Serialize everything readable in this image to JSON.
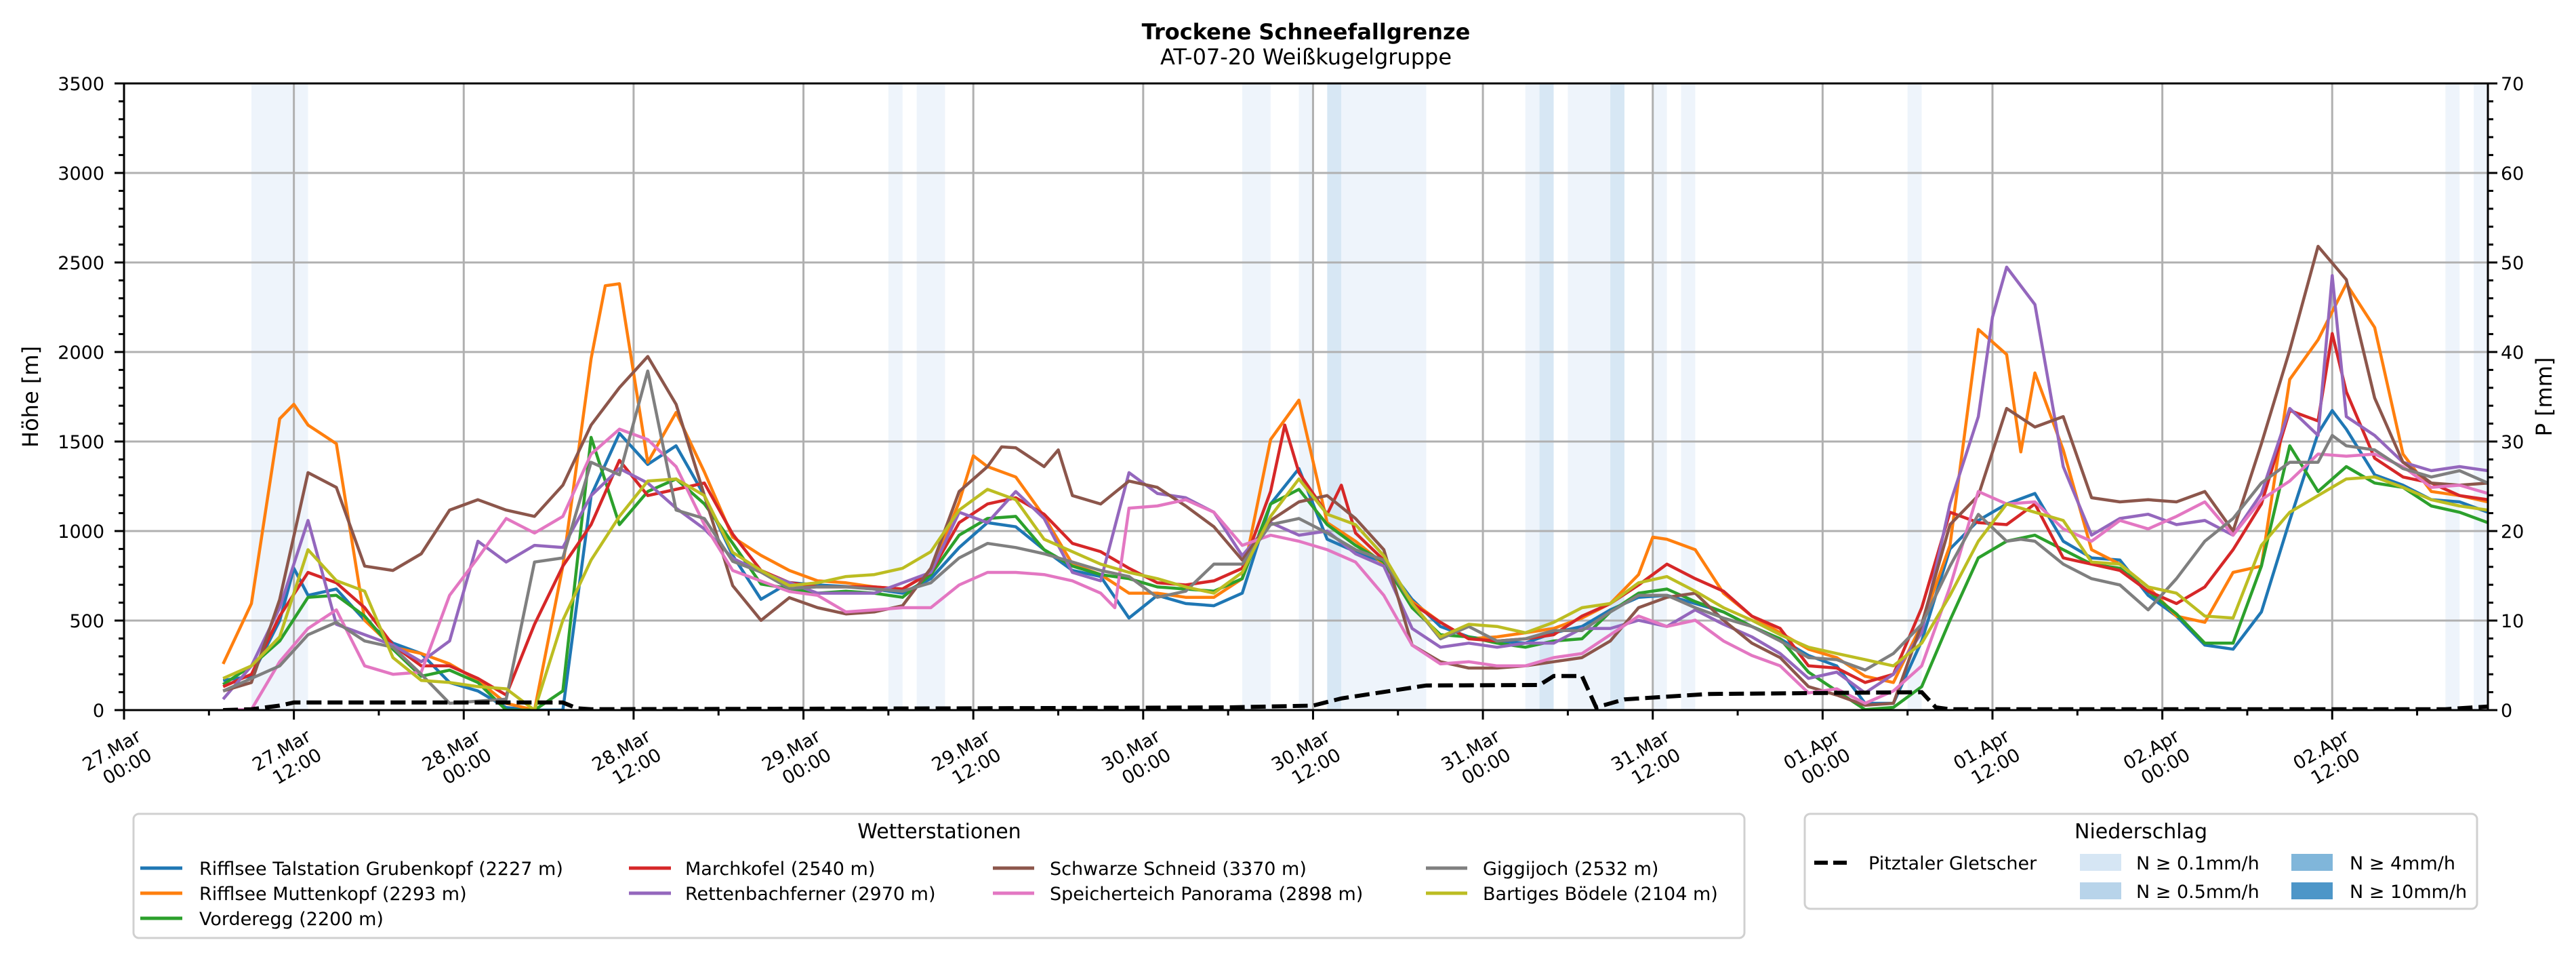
{
  "chart_data": {
    "type": "line",
    "title": "Trockene Schneefallgrenze",
    "subtitle": "AT-07-20 Weißkugelgruppe",
    "xlabel": "",
    "ylabel": "Höhe [m]",
    "y2label": "P [mm]",
    "ylim": [
      0,
      3500
    ],
    "y2lim": [
      0,
      70
    ],
    "xlim_hours": [
      0,
      167
    ],
    "grid": true,
    "yticks": [
      "0",
      "500",
      "1000",
      "1500",
      "2000",
      "2500",
      "3000",
      "3500"
    ],
    "y2ticks": [
      "0",
      "10",
      "20",
      "30",
      "40",
      "50",
      "60",
      "70"
    ],
    "xticks": [
      {
        "h": 0,
        "date": "27.Mar",
        "time": "00:00"
      },
      {
        "h": 12,
        "date": "27.Mar",
        "time": "12:00"
      },
      {
        "h": 24,
        "date": "28.Mar",
        "time": "00:00"
      },
      {
        "h": 36,
        "date": "28.Mar",
        "time": "12:00"
      },
      {
        "h": 48,
        "date": "29.Mar",
        "time": "00:00"
      },
      {
        "h": 60,
        "date": "29.Mar",
        "time": "12:00"
      },
      {
        "h": 72,
        "date": "30.Mar",
        "time": "00:00"
      },
      {
        "h": 84,
        "date": "30.Mar",
        "time": "12:00"
      },
      {
        "h": 96,
        "date": "31.Mar",
        "time": "00:00"
      },
      {
        "h": 108,
        "date": "31.Mar",
        "time": "12:00"
      },
      {
        "h": 120,
        "date": "01.Apr",
        "time": "00:00"
      },
      {
        "h": 132,
        "date": "01.Apr",
        "time": "12:00"
      },
      {
        "h": 144,
        "date": "02.Apr",
        "time": "00:00"
      },
      {
        "h": 156,
        "date": "02.Apr",
        "time": "12:00"
      }
    ],
    "legend_title": "Wetterstationen",
    "legend_position": "bottom",
    "x": [
      7,
      9,
      11,
      13,
      15,
      17,
      19,
      21,
      23,
      25,
      27,
      29,
      31,
      33,
      35,
      37,
      39,
      41,
      43,
      45,
      47,
      49,
      51,
      53,
      55,
      57,
      59,
      61,
      63,
      65,
      67,
      69,
      71,
      73,
      75,
      77,
      79,
      81,
      83,
      85,
      87,
      89,
      91,
      93,
      95,
      97,
      99,
      101,
      103,
      105,
      107,
      109,
      111,
      113,
      115,
      117,
      119,
      121,
      123,
      125,
      127,
      129,
      131,
      133,
      135,
      137,
      139,
      141,
      143,
      145,
      147,
      149,
      151,
      153,
      155,
      157,
      159,
      161,
      163,
      165,
      167
    ],
    "series": [
      {
        "name": "Rifflsee Talstation Grubenkopf (2227 m)",
        "color": "#1f77b4",
        "values": [
          166,
          189,
          500,
          641,
          676,
          502,
          374,
          316,
          154,
          107,
          14,
          0,
          0,
          1198,
          1546,
          1372,
          1476,
          1198,
          864,
          619,
          712,
          699,
          690,
          676,
          653,
          734,
          908,
          1047,
          1024,
          896,
          780,
          746,
          514,
          641,
          595,
          583,
          653,
          1151,
          1349,
          954,
          885,
          827,
          618,
          467,
          409,
          386,
          374,
          432,
          467,
          560,
          630,
          641,
          595,
          548,
          467,
          398,
          305,
          247,
          38,
          38,
          386,
          900,
          1059,
          1151,
          1210,
          943,
          850,
          838,
          641,
          525,
          363,
          340,
          548,
          1059,
          1546,
          1569,
          1314,
          1256,
          1175,
          1163,
          1105
        ],
        "extra": [
          [
            12,
            792
          ],
          [
            156,
            1673
          ]
        ]
      },
      {
        "name": "Rifflsee Muttenkopf (2293 m)",
        "color": "#ff7f0e",
        "values": [
          258,
          595,
          1627,
          1592,
          1488,
          502,
          351,
          316,
          258,
          166,
          38,
          0,
          804,
          1963,
          2381,
          1384,
          1662,
          1330,
          966,
          864,
          780,
          722,
          711,
          688,
          676,
          769,
          1163,
          1360,
          1302,
          1082,
          815,
          757,
          653,
          653,
          630,
          630,
          734,
          1511,
          1731,
          1047,
          943,
          815,
          606,
          490,
          398,
          409,
          432,
          456,
          514,
          595,
          757,
          954,
          896,
          653,
          525,
          432,
          340,
          293,
          189,
          154,
          479,
          920,
          2126,
          1986,
          1883,
          1453,
          896,
          815,
          688,
          525,
          490,
          769,
          804,
          1847,
          2068,
          2381,
          2137,
          1430,
          1221,
          1198,
          1163
        ],
        "extra": [
          [
            12,
            1708
          ],
          [
            34,
            2370
          ],
          [
            60,
            1420
          ],
          [
            108,
            966
          ],
          [
            134,
            1442
          ]
        ]
      },
      {
        "name": "Vorderegg (2200 m)",
        "color": "#2ca02c",
        "values": [
          143,
          247,
          386,
          630,
          641,
          525,
          340,
          189,
          223,
          154,
          0,
          0,
          107,
          1523,
          1036,
          1221,
          1291,
          1152,
          932,
          704,
          679,
          653,
          664,
          653,
          630,
          757,
          977,
          1070,
          1082,
          896,
          804,
          757,
          734,
          688,
          676,
          664,
          734,
          1151,
          1233,
          1036,
          920,
          827,
          572,
          421,
          409,
          374,
          351,
          386,
          398,
          548,
          653,
          676,
          606,
          548,
          467,
          398,
          212,
          107,
          3,
          15,
          131,
          502,
          850,
          943,
          977,
          896,
          815,
          792,
          664,
          537,
          374,
          374,
          804,
          1476,
          1221,
          1360,
          1268,
          1244,
          1140,
          1105,
          1047
        ],
        "extra": []
      },
      {
        "name": "Marchkofel (2540 m)",
        "color": "#d62728",
        "values": [
          131,
          200,
          525,
          769,
          711,
          572,
          363,
          247,
          247,
          177,
          84,
          479,
          804,
          1036,
          1395,
          1198,
          1233,
          1268,
          983,
          780,
          712,
          688,
          688,
          688,
          676,
          769,
          1047,
          1151,
          1186,
          1094,
          931,
          885,
          792,
          711,
          699,
          722,
          792,
          1221,
          1326,
          1094,
          989,
          838,
          595,
          490,
          398,
          386,
          398,
          421,
          525,
          595,
          699,
          815,
          734,
          664,
          525,
          456,
          247,
          235,
          154,
          200,
          572,
          1105,
          1047,
          1036,
          1151,
          850,
          815,
          780,
          664,
          595,
          688,
          896,
          1151,
          1673,
          1615,
          1778,
          1407,
          1302,
          1268,
          1198,
          1175
        ],
        "extra": [
          [
            82,
            1592
          ],
          [
            86,
            1256
          ],
          [
            156,
            2103
          ]
        ]
      },
      {
        "name": "Rettenbachferner (2970 m)",
        "color": "#9467bd",
        "values": [
          61,
          247,
          572,
          1059,
          479,
          421,
          363,
          270,
          386,
          943,
          827,
          920,
          908,
          1198,
          1349,
          1268,
          1128,
          1012,
          848,
          771,
          712,
          653,
          653,
          653,
          711,
          769,
          1105,
          1047,
          1221,
          1070,
          769,
          722,
          1326,
          1210,
          1186,
          1105,
          862,
          1047,
          977,
          1000,
          873,
          804,
          456,
          351,
          374,
          351,
          374,
          374,
          456,
          456,
          502,
          467,
          560,
          479,
          409,
          316,
          177,
          212,
          96,
          200,
          432,
          1151,
          1639,
          2474,
          2265,
          1360,
          977,
          1070,
          1094,
          1036,
          1059,
          977,
          1210,
          1685,
          1534,
          1639,
          1534,
          1384,
          1337,
          1360,
          1337
        ],
        "extra": [
          [
            132,
            2195
          ],
          [
            156,
            2427
          ]
        ]
      },
      {
        "name": "Schwarze Schneid (3370 m)",
        "color": "#8c564b",
        "values": [
          107,
          154,
          618,
          1326,
          1244,
          804,
          780,
          873,
          1117,
          1175,
          1117,
          1082,
          1256,
          1592,
          1801,
          1975,
          1708,
          1200,
          695,
          501,
          628,
          572,
          537,
          548,
          583,
          792,
          1221,
          1360,
          1465,
          1360,
          1198,
          1151,
          1279,
          1244,
          1140,
          1024,
          838,
          1059,
          1163,
          1198,
          1070,
          896,
          363,
          270,
          235,
          235,
          247,
          270,
          293,
          386,
          572,
          630,
          653,
          502,
          374,
          293,
          131,
          84,
          27,
          38,
          479,
          1036,
          1198,
          1685,
          1581,
          1639,
          1186,
          1163,
          1175,
          1163,
          1221,
          1000,
          1488,
          2010,
          2590,
          2404,
          1743,
          1384,
          1268,
          1256,
          1268
        ],
        "extra": [
          [
            62,
            1470
          ],
          [
            66,
            1453
          ]
        ]
      },
      {
        "name": "Speicherteich Panorama (2898 m)",
        "color": "#e377c2",
        "values": [
          0,
          3,
          270,
          456,
          560,
          247,
          200,
          212,
          641,
          850,
          1070,
          989,
          1082,
          1430,
          1569,
          1511,
          1360,
          1036,
          780,
          721,
          662,
          641,
          548,
          560,
          572,
          572,
          699,
          769,
          769,
          757,
          722,
          653,
          1128,
          1140,
          1175,
          1105,
          920,
          977,
          943,
          896,
          827,
          641,
          363,
          258,
          270,
          247,
          247,
          293,
          316,
          421,
          525,
          467,
          502,
          386,
          305,
          247,
          96,
          119,
          38,
          107,
          247,
          688,
          1221,
          1151,
          1163,
          1012,
          943,
          1059,
          1012,
          1082,
          1163,
          977,
          1175,
          1279,
          1430,
          1418,
          1430,
          1360,
          1244,
          1256,
          1210
        ],
        "extra": [
          [
            70,
            572
          ]
        ]
      },
      {
        "name": "Giggijoch (2532 m)",
        "color": "#7f7f7f",
        "values": [
          107,
          177,
          247,
          421,
          490,
          386,
          351,
          200,
          38,
          50,
          61,
          827,
          850,
          1384,
          1314,
          1894,
          1117,
          1070,
          831,
          771,
          679,
          688,
          688,
          676,
          664,
          711,
          850,
          931,
          908,
          873,
          827,
          780,
          746,
          630,
          664,
          815,
          815,
          1036,
          1070,
          989,
          896,
          838,
          595,
          398,
          467,
          386,
          398,
          444,
          444,
          548,
          641,
          641,
          572,
          514,
          467,
          386,
          293,
          282,
          224,
          316,
          479,
          804,
          1093,
          943,
          943,
          815,
          734,
          699,
          560,
          734,
          943,
          1070,
          1268,
          1384,
          1384,
          1476,
          1453,
          1349,
          1302,
          1337,
          1268
        ],
        "extra": [
          [
            134,
            954
          ],
          [
            156,
            1534
          ]
        ]
      },
      {
        "name": "Bartiges Bödele (2104 m)",
        "color": "#bcbd22",
        "values": [
          177,
          247,
          409,
          896,
          723,
          664,
          293,
          166,
          154,
          131,
          119,
          0,
          502,
          838,
          1082,
          1279,
          1291,
          1198,
          881,
          780,
          695,
          711,
          746,
          757,
          792,
          885,
          1117,
          1233,
          1175,
          954,
          885,
          815,
          769,
          734,
          688,
          653,
          769,
          1082,
          1291,
          1094,
          1036,
          862,
          595,
          409,
          479,
          467,
          432,
          490,
          572,
          595,
          711,
          746,
          664,
          572,
          502,
          421,
          351,
          316,
          282,
          247,
          374,
          641,
          943,
          1151,
          1105,
          1059,
          827,
          815,
          688,
          653,
          525,
          514,
          920,
          1105,
          1198,
          1291,
          1302,
          1244,
          1175,
          1140,
          1117
        ],
        "extra": []
      }
    ],
    "precip_legend_title": "Niederschlag",
    "precip_series": {
      "name": "Pitztaler Gletscher",
      "color": "#000000",
      "points": [
        [
          7,
          0
        ],
        [
          9,
          0.1
        ],
        [
          11,
          0.5
        ],
        [
          12,
          0.85
        ],
        [
          31,
          0.85
        ],
        [
          32,
          0.2
        ],
        [
          33,
          0.1
        ],
        [
          60,
          0.2
        ],
        [
          78,
          0.3
        ],
        [
          84,
          0.5
        ],
        [
          86,
          1.3
        ],
        [
          92,
          2.75
        ],
        [
          100,
          2.8
        ],
        [
          101,
          3.8
        ],
        [
          103,
          3.8
        ],
        [
          104,
          0.3
        ],
        [
          106,
          1.2
        ],
        [
          112,
          1.8
        ],
        [
          127,
          2.0
        ],
        [
          128,
          0.3
        ],
        [
          129,
          0.1
        ],
        [
          164,
          0.1
        ],
        [
          167,
          0.4
        ]
      ]
    },
    "precip_levels": [
      {
        "label": "N ≥ 0.1mm/h",
        "color": "#d6e6f4",
        "plot_color": "#eef4fb"
      },
      {
        "label": "N ≥ 0.5mm/h",
        "color": "#b8d4ea",
        "plot_color": "#d7e7f4"
      },
      {
        "label": "N ≥ 4mm/h",
        "color": "#80b6da",
        "plot_color": "#b3d2ea"
      },
      {
        "label": "N ≥ 10mm/h",
        "color": "#4d96c8",
        "plot_color": "#8fbddf"
      }
    ],
    "precip_bands": [
      [
        9,
        13,
        1
      ],
      [
        54,
        55,
        1
      ],
      [
        56,
        58,
        1
      ],
      [
        79,
        81,
        1
      ],
      [
        83,
        84,
        1
      ],
      [
        85,
        86,
        2
      ],
      [
        86,
        92,
        1
      ],
      [
        99,
        100,
        1
      ],
      [
        100,
        101,
        2
      ],
      [
        102,
        105,
        1
      ],
      [
        105,
        106,
        2
      ],
      [
        108,
        109,
        1
      ],
      [
        110,
        111,
        1
      ],
      [
        126,
        127,
        1
      ],
      [
        164,
        165,
        1
      ],
      [
        166,
        167,
        1
      ]
    ]
  }
}
